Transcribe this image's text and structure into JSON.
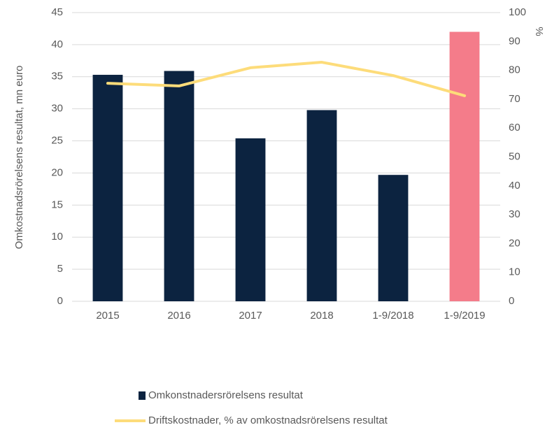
{
  "chart_data": {
    "type": "bar",
    "y_label": "Omkostnadsrörelsens resultat, mn euro",
    "y2_label": "%",
    "categories": [
      "2015",
      "2016",
      "2017",
      "2018",
      "1-9/2018",
      "1-9/2019"
    ],
    "series": [
      {
        "name": "Omkonstnadersrörelsens resultat",
        "type": "bar",
        "colors": [
          "#0c2340",
          "#0c2340",
          "#0c2340",
          "#0c2340",
          "#0c2340",
          "#f47c8a"
        ],
        "values": [
          35.3,
          35.9,
          25.4,
          29.8,
          19.7,
          42.0
        ]
      },
      {
        "name": "Driftskostnader, % av omkostnadsrörelsens resultat",
        "type": "line",
        "axis": "y2",
        "color": "#fddc7a",
        "values": [
          75.5,
          74.6,
          80.9,
          82.8,
          78.2,
          71.2
        ]
      }
    ],
    "ylim": [
      0,
      45
    ],
    "yticks": [
      0,
      5,
      10,
      15,
      20,
      25,
      30,
      35,
      40,
      45
    ],
    "y2lim": [
      0,
      100
    ],
    "y2ticks": [
      0,
      10,
      20,
      30,
      40,
      50,
      60,
      70,
      80,
      90,
      100
    ],
    "grid": true,
    "legend": "bottom"
  }
}
